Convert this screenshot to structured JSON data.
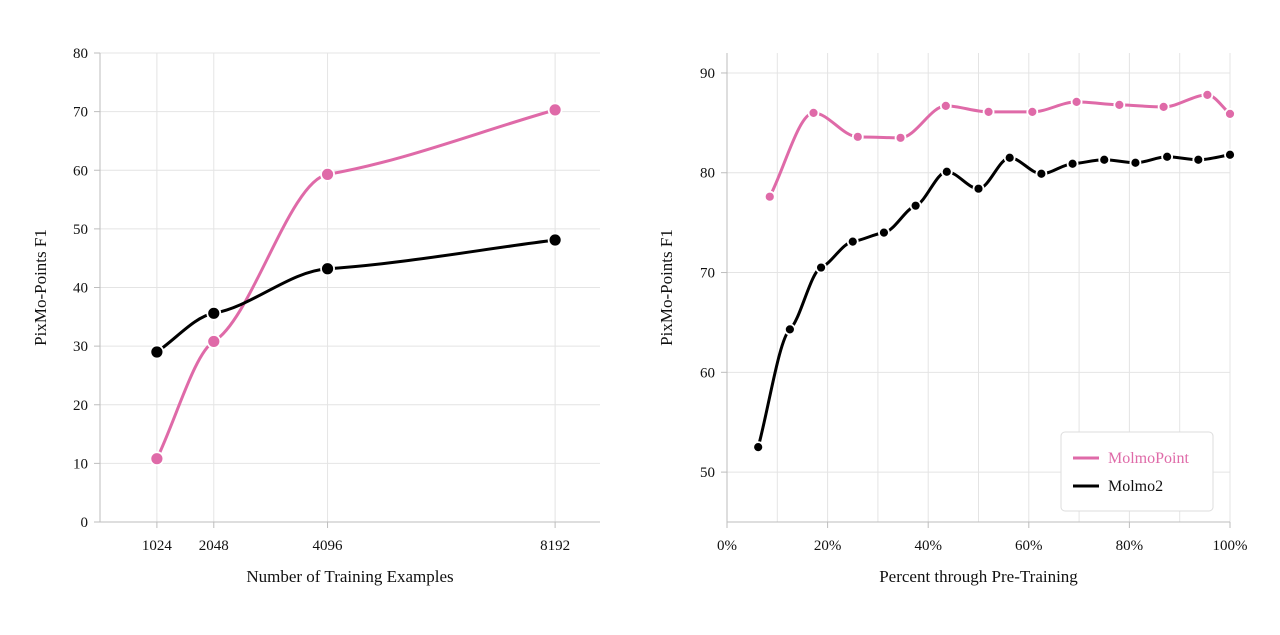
{
  "colors": {
    "molmopoint": "#df6aa8",
    "molmo2": "#000000"
  },
  "chart_data": [
    {
      "type": "line",
      "title": "",
      "xlabel": "Number of Training Examples",
      "ylabel": "PixMo-Points F1",
      "xlim": [
        0,
        9000
      ],
      "ylim": [
        0,
        80
      ],
      "xticks": [
        1024,
        2048,
        4096,
        8192
      ],
      "xtick_labels": [
        "1024",
        "2048",
        "4096",
        "8192"
      ],
      "yticks": [
        0,
        10,
        20,
        30,
        40,
        50,
        60,
        70,
        80
      ],
      "ytick_labels": [
        "0",
        "10",
        "20",
        "30",
        "40",
        "50",
        "60",
        "70",
        "80"
      ],
      "grid": true,
      "legend": null,
      "series": [
        {
          "key": "molmopoint",
          "color": "#df6aa8",
          "x": [
            1024,
            2048,
            4096,
            8192
          ],
          "y": [
            10.8,
            30.8,
            59.3,
            70.3
          ]
        },
        {
          "key": "molmo2",
          "color": "#000000",
          "x": [
            1024,
            2048,
            4096,
            8192
          ],
          "y": [
            29.0,
            35.6,
            43.2,
            48.1
          ]
        }
      ]
    },
    {
      "type": "line",
      "title": "",
      "xlabel": "Percent through Pre-Training",
      "ylabel": "PixMo-Points F1",
      "xlim": [
        0,
        100
      ],
      "ylim": [
        45,
        92
      ],
      "xticks": [
        0,
        20,
        40,
        60,
        80,
        100
      ],
      "xtick_labels": [
        "0%",
        "20%",
        "40%",
        "60%",
        "80%",
        "100%"
      ],
      "yticks": [
        50,
        60,
        70,
        80,
        90
      ],
      "ytick_labels": [
        "50",
        "60",
        "70",
        "80",
        "90"
      ],
      "grid": true,
      "legend": "bottom-right",
      "series": [
        {
          "key": "molmopoint",
          "name": "MolmoPoint",
          "color": "#df6aa8",
          "x": [
            8.5,
            17.2,
            26,
            34.5,
            43.5,
            52,
            60.7,
            69.5,
            78,
            86.8,
            95.5,
            100
          ],
          "y": [
            77.6,
            86.0,
            83.6,
            83.5,
            86.7,
            86.1,
            86.1,
            87.1,
            86.8,
            86.6,
            87.8,
            85.9
          ]
        },
        {
          "key": "molmo2",
          "name": "Molmo2",
          "color": "#000000",
          "x": [
            6.2,
            12.5,
            18.7,
            25,
            31.2,
            37.5,
            43.7,
            50,
            56.2,
            62.5,
            68.7,
            75,
            81.2,
            87.5,
            93.7,
            100
          ],
          "y": [
            52.5,
            64.3,
            70.5,
            73.1,
            74.0,
            76.7,
            80.1,
            78.4,
            81.5,
            79.9,
            80.9,
            81.3,
            81.0,
            81.6,
            81.3,
            81.8
          ]
        }
      ]
    }
  ]
}
